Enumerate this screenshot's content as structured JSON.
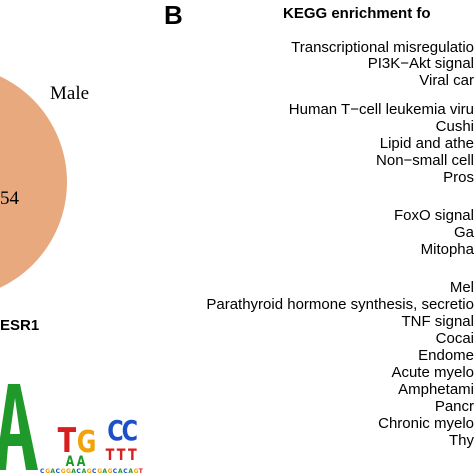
{
  "panel_a": {
    "venn": {
      "group_label": "Male",
      "count_fragment": "54",
      "fill_color": "#e9a97f"
    },
    "motif_title": "ESR1",
    "motif_letters": [
      "A",
      "T",
      "G",
      "C",
      "C",
      "A",
      "A",
      "T",
      "T",
      "T"
    ]
  },
  "panel_b": {
    "letter": "B",
    "title": "KEGG enrichment fo",
    "terms": [
      "Transcriptional misregulatio",
      "PI3K−Akt signal",
      "Viral car",
      "Human T−cell leukemia viru",
      "Cushi",
      "Lipid and athe",
      "Non−small cell",
      "Pros",
      "FoxO signal",
      "Ga",
      "Mitopha",
      "Mel",
      "Parathyroid hormone synthesis, secretio",
      "TNF signal",
      "Cocai",
      "Endome",
      "Acute myelo",
      "Amphetami",
      "Pancr",
      "Chronic myelo",
      "Thy"
    ]
  }
}
